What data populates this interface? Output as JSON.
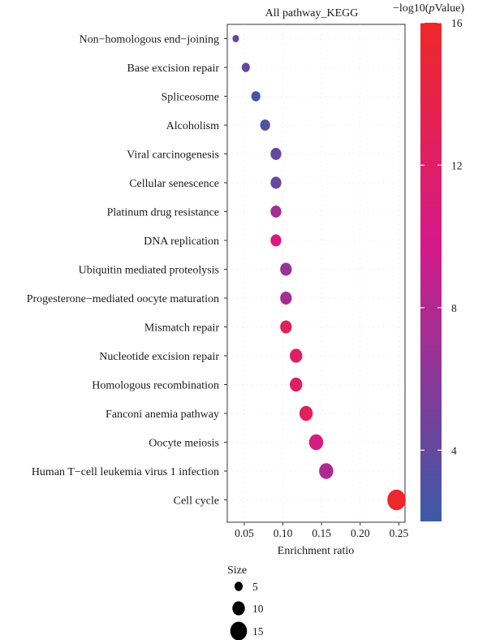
{
  "chart_data": {
    "type": "scatter",
    "title": "All pathway_KEGG",
    "xlabel": "Enrichment ratio",
    "ylabel": "",
    "xlim": [
      0.028,
      0.258
    ],
    "xticks": [
      0.05,
      0.1,
      0.15,
      0.2,
      0.25
    ],
    "xtick_labels": [
      "0.05",
      "0.10",
      "0.15",
      "0.20",
      "0.25"
    ],
    "grid": true,
    "legend_position": "right",
    "categories": [
      "Non−homologous end−joining",
      "Base excision repair",
      "Spliceosome",
      "Alcoholism",
      "Viral carcinogenesis",
      "Cellular senescence",
      "Platinum drug resistance",
      "DNA replication",
      "Ubiquitin mediated proteolysis",
      "Progesterone−mediated oocyte maturation",
      "Mismatch repair",
      "Nucleotide excision repair",
      "Homologous recombination",
      "Fanconi anemia pathway",
      "Oocyte meiosis",
      "Human T−cell leukemia virus 1 infection",
      "Cell cycle"
    ],
    "points": [
      {
        "pathway": "Non−homologous end−joining",
        "enrichment_ratio": 0.039,
        "neg_log10_p": 4.0,
        "size": 3
      },
      {
        "pathway": "Base excision repair",
        "enrichment_ratio": 0.052,
        "neg_log10_p": 4.2,
        "size": 5
      },
      {
        "pathway": "Spliceosome",
        "enrichment_ratio": 0.065,
        "neg_log10_p": 2.6,
        "size": 6
      },
      {
        "pathway": "Alcoholism",
        "enrichment_ratio": 0.077,
        "neg_log10_p": 3.0,
        "size": 7
      },
      {
        "pathway": "Viral carcinogenesis",
        "enrichment_ratio": 0.091,
        "neg_log10_p": 4.0,
        "size": 8
      },
      {
        "pathway": "Cellular senescence",
        "enrichment_ratio": 0.091,
        "neg_log10_p": 4.1,
        "size": 8
      },
      {
        "pathway": "Platinum drug resistance",
        "enrichment_ratio": 0.091,
        "neg_log10_p": 7.2,
        "size": 8
      },
      {
        "pathway": "DNA replication",
        "enrichment_ratio": 0.091,
        "neg_log10_p": 10.3,
        "size": 8
      },
      {
        "pathway": "Ubiquitin mediated proteolysis",
        "enrichment_ratio": 0.104,
        "neg_log10_p": 6.6,
        "size": 9
      },
      {
        "pathway": "Progesterone−mediated oocyte maturation",
        "enrichment_ratio": 0.104,
        "neg_log10_p": 7.3,
        "size": 9
      },
      {
        "pathway": "Mismatch repair",
        "enrichment_ratio": 0.104,
        "neg_log10_p": 12.8,
        "size": 9
      },
      {
        "pathway": "Nucleotide excision repair",
        "enrichment_ratio": 0.117,
        "neg_log10_p": 12.0,
        "size": 10
      },
      {
        "pathway": "Homologous recombination",
        "enrichment_ratio": 0.117,
        "neg_log10_p": 12.3,
        "size": 10
      },
      {
        "pathway": "Fanconi anemia pathway",
        "enrichment_ratio": 0.13,
        "neg_log10_p": 12.7,
        "size": 11
      },
      {
        "pathway": "Oocyte meiosis",
        "enrichment_ratio": 0.143,
        "neg_log10_p": 10.2,
        "size": 12
      },
      {
        "pathway": "Human T−cell leukemia virus 1 infection",
        "enrichment_ratio": 0.156,
        "neg_log10_p": 7.8,
        "size": 12
      },
      {
        "pathway": "Cell cycle",
        "enrichment_ratio": 0.247,
        "neg_log10_p": 15.8,
        "size": 17
      }
    ],
    "color_scale": {
      "title_prefix": "−log10(",
      "title_italic": "p",
      "title_suffix": "Value)",
      "min": 2.0,
      "max": 16.0,
      "ticks": [
        4,
        8,
        12,
        16
      ],
      "tick_labels": [
        "4",
        "8",
        "12",
        "16"
      ],
      "low_color": "#3b5aa7",
      "mid_color": "#d41a8a",
      "high_color": "#ee2828"
    },
    "size_legend": {
      "title": "Size",
      "values": [
        5,
        10,
        15
      ],
      "labels": [
        "5",
        "10",
        "15"
      ]
    }
  }
}
